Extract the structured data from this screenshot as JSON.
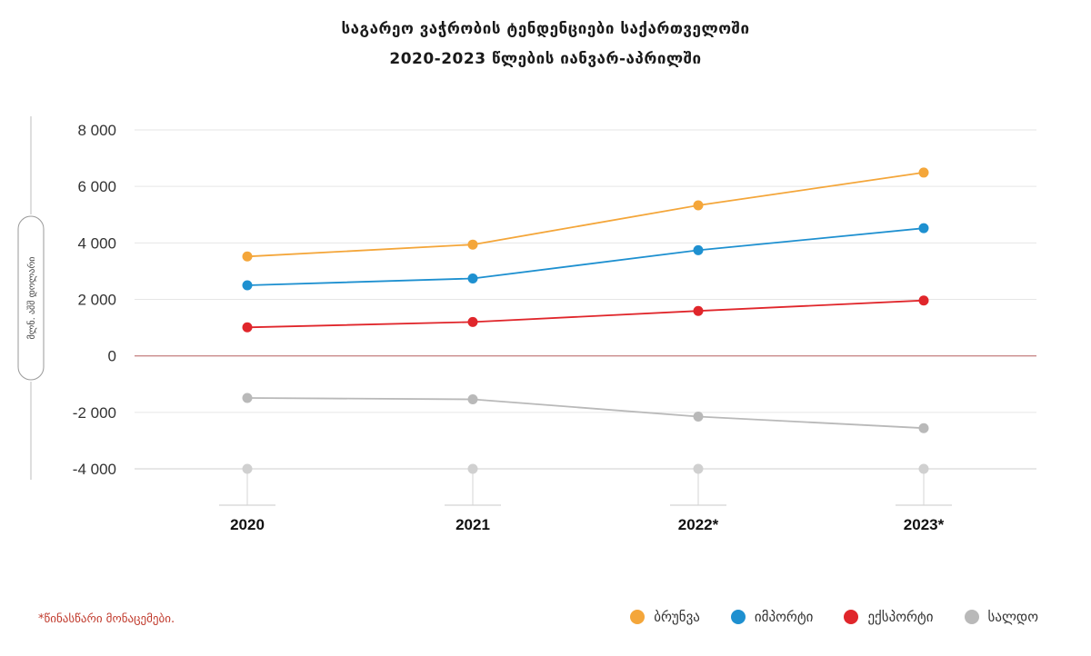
{
  "title_line1": "საგარეო ვაჭრობის ტენდენციები საქართველოში",
  "title_line2": "2020-2023 წლების იანვარ-აპრილში",
  "footnote": "*წინასწარი მონაცემები.",
  "legend": [
    {
      "label": "ბრუნვა",
      "color": "#f4a63a"
    },
    {
      "label": "იმპორტი",
      "color": "#1e90d0"
    },
    {
      "label": "ექსპორტი",
      "color": "#e0262b"
    },
    {
      "label": "სალდო",
      "color": "#b9b9b9"
    }
  ],
  "chart_data": {
    "type": "line",
    "title": "საგარეო ვაჭრობის ტენდენციები საქართველოში 2020-2023 წლების იანვარ-აპრილში",
    "ylabel": "მლნ. აშშ დოლარი",
    "xlabel": "",
    "categories": [
      "2020",
      "2021",
      "2022*",
      "2023*"
    ],
    "ylim": [
      -4000,
      8000
    ],
    "yticks": [
      8000,
      6000,
      4000,
      2000,
      0,
      -2000,
      -4000
    ],
    "ytick_labels": [
      "8 000",
      "6 000",
      "4 000",
      "2 000",
      "0",
      "-2 000",
      "-4 000"
    ],
    "grid": true,
    "legend_position": "bottom-right",
    "series": [
      {
        "name": "ბრუნვა",
        "color": "#f4a63a",
        "values": [
          3520,
          3940,
          5330,
          6490
        ]
      },
      {
        "name": "იმპორტი",
        "color": "#1e90d0",
        "values": [
          2500,
          2740,
          3740,
          4520
        ]
      },
      {
        "name": "ექსპორტი",
        "color": "#e0262b",
        "values": [
          1010,
          1200,
          1590,
          1960
        ]
      },
      {
        "name": "სალდო",
        "color": "#b9b9b9",
        "values": [
          -1490,
          -1540,
          -2150,
          -2560
        ]
      }
    ]
  }
}
